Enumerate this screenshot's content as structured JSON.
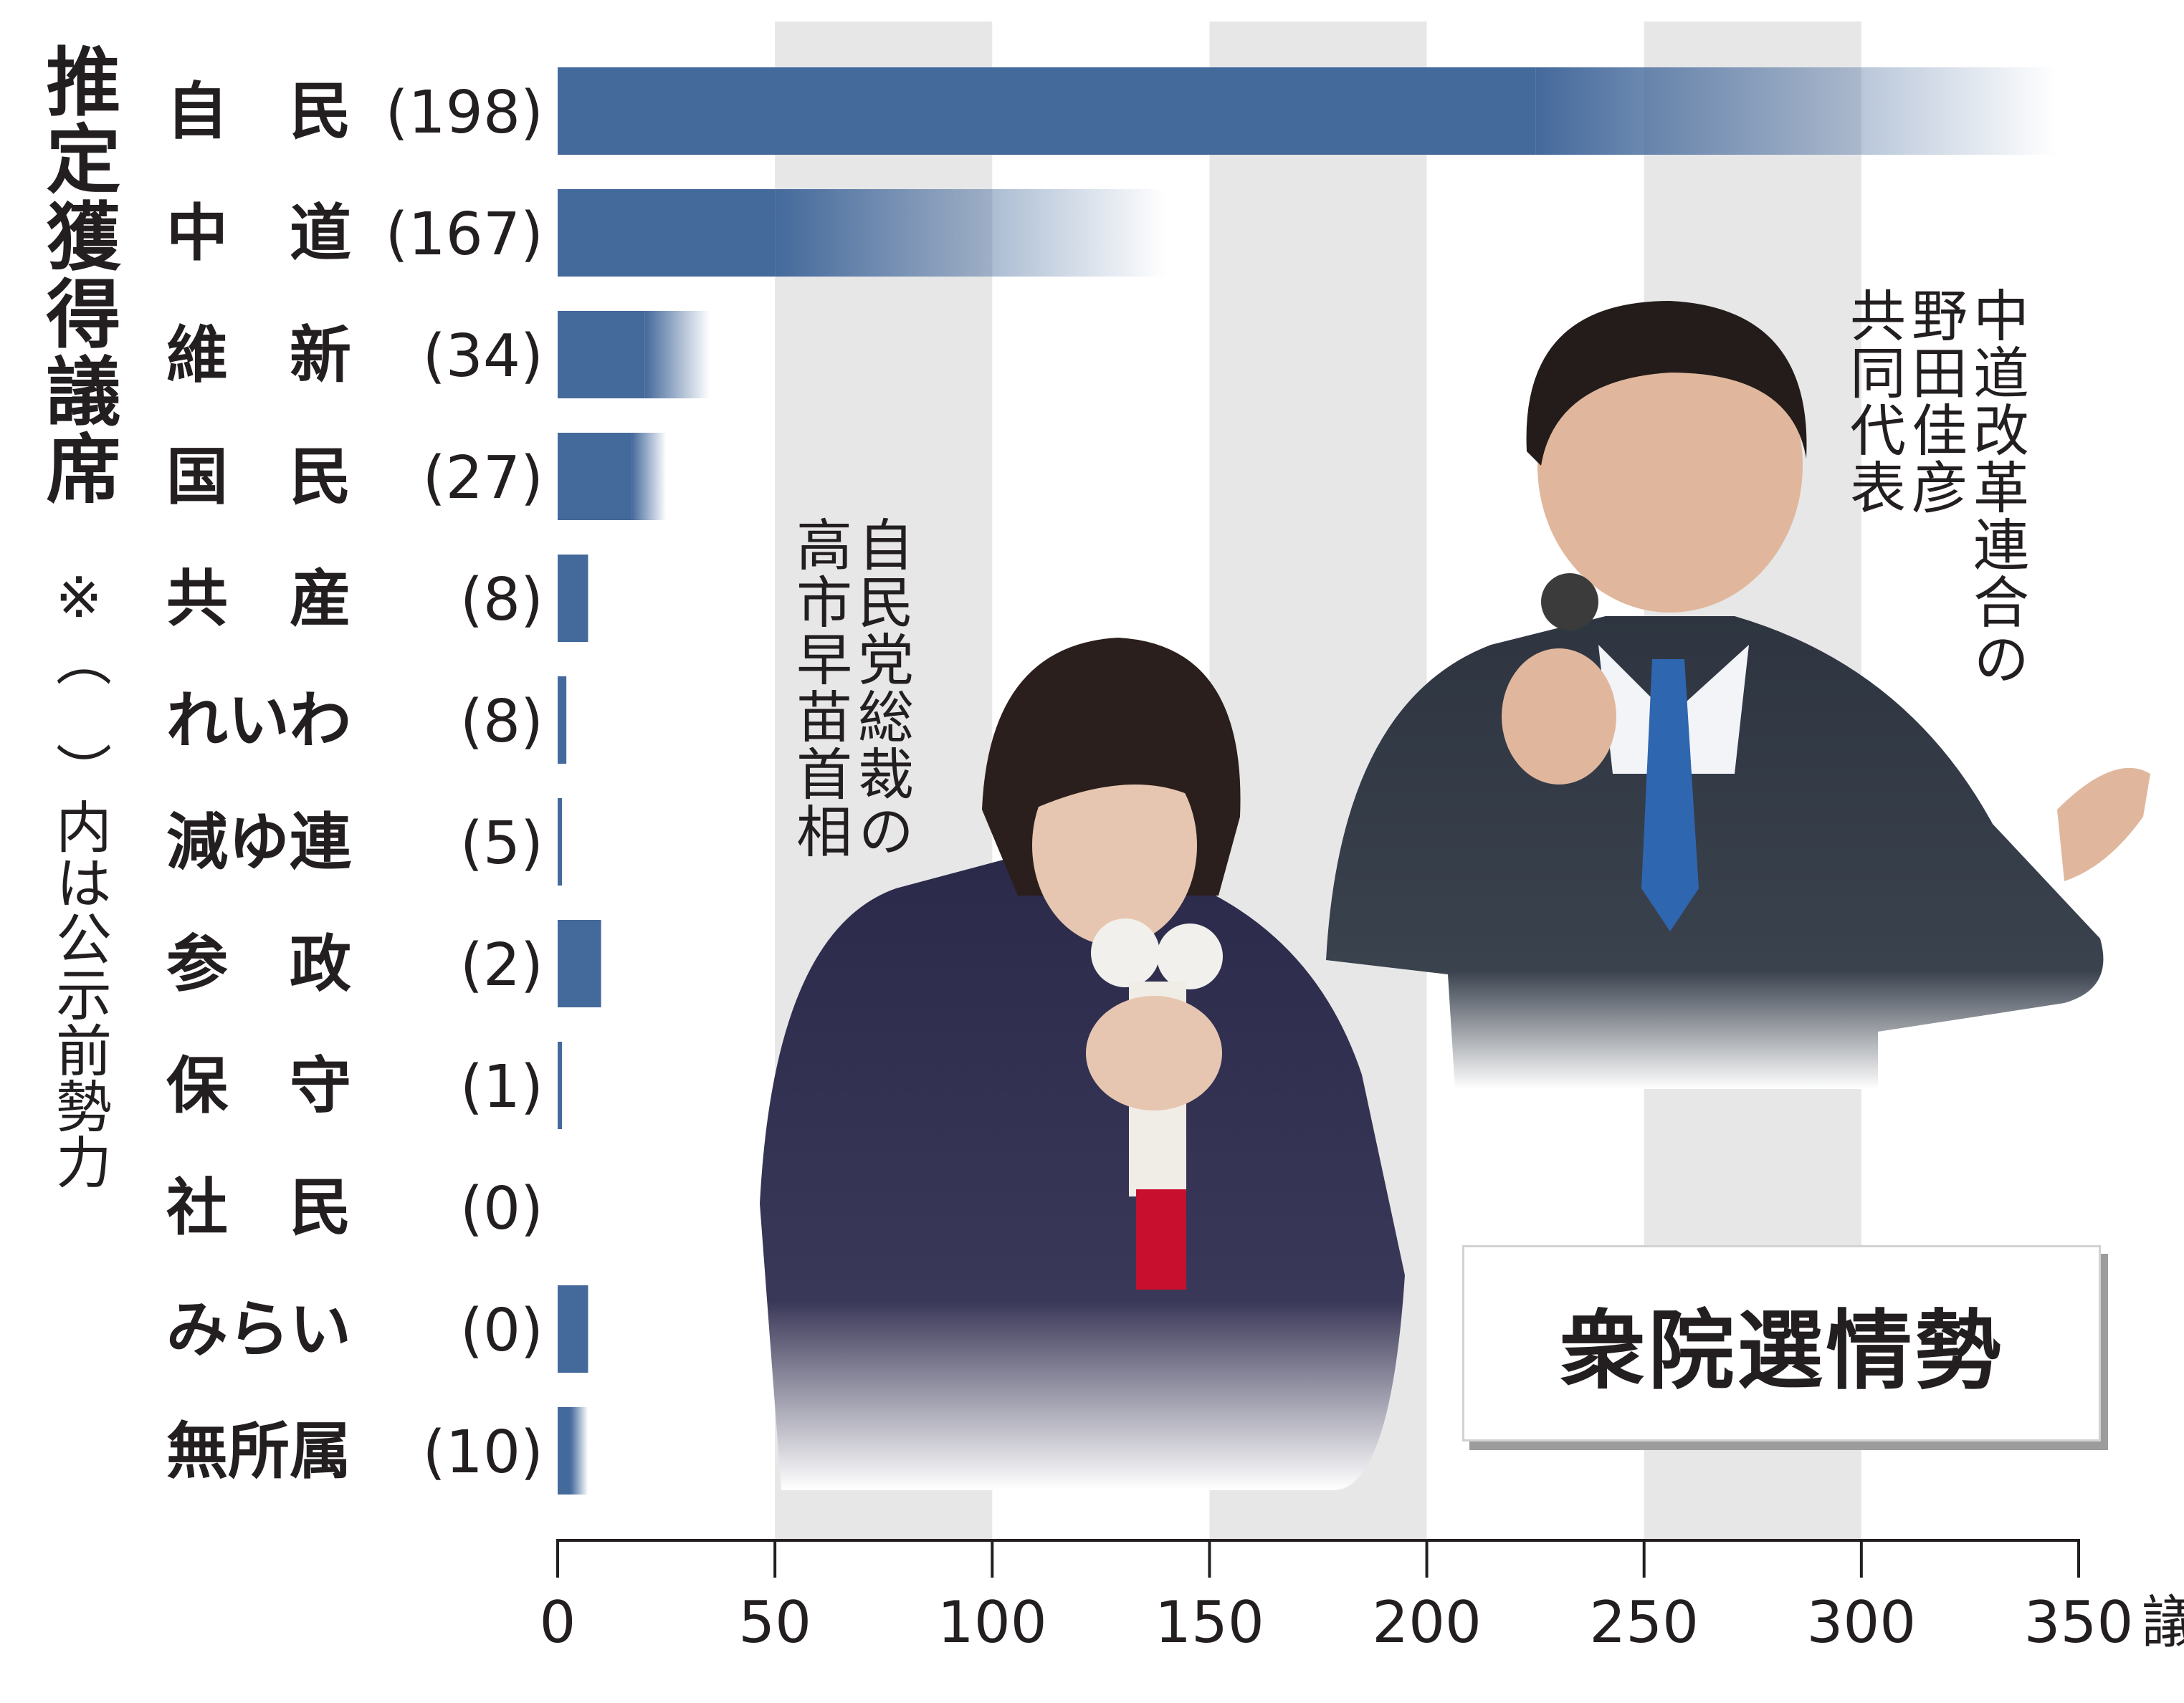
{
  "chart_data": {
    "type": "bar",
    "orientation": "horizontal",
    "title": "衆院選情勢",
    "ylabel": "推定獲得議席",
    "note": "※（　）内は公示前勢力",
    "xlabel": "議席",
    "xlim": [
      0,
      350
    ],
    "xticks": [
      "0",
      "50",
      "100",
      "150",
      "200",
      "250",
      "300",
      "350"
    ],
    "xtick_values": [
      0,
      50,
      100,
      150,
      200,
      250,
      300,
      350
    ],
    "x_unit": "議席",
    "grid": "alternating vertical bands",
    "categories": [
      {
        "name": "自　民",
        "prior": "(198)",
        "low": 225,
        "high": 345
      },
      {
        "name": "中　道",
        "prior": "(167)",
        "low": 50,
        "high": 140
      },
      {
        "name": "維　新",
        "prior": "(34)",
        "low": 20,
        "high": 35
      },
      {
        "name": "国　民",
        "prior": "(27)",
        "low": 17,
        "high": 25
      },
      {
        "name": "共　産",
        "prior": "(8)",
        "low": 7,
        "high": 7
      },
      {
        "name": "れいわ",
        "prior": "(8)",
        "low": 2,
        "high": 2
      },
      {
        "name": "減ゆ連",
        "prior": "(5)",
        "low": 1,
        "high": 1
      },
      {
        "name": "参　政",
        "prior": "(2)",
        "low": 10,
        "high": 10
      },
      {
        "name": "保　守",
        "prior": "(1)",
        "low": 1,
        "high": 1
      },
      {
        "name": "社　民",
        "prior": "(0)",
        "low": 0,
        "high": 0
      },
      {
        "name": "みらい",
        "prior": "(0)",
        "low": 7,
        "high": 7
      },
      {
        "name": "無所属",
        "prior": "(10)",
        "low": 3,
        "high": 7
      }
    ],
    "bar_color": "#44699b",
    "band_color": "#e7e7e8"
  },
  "captions": {
    "left": "自民党総裁の\n高市早苗首相",
    "right": "中道改革連合の\n野田佳彦\n共同代表"
  }
}
